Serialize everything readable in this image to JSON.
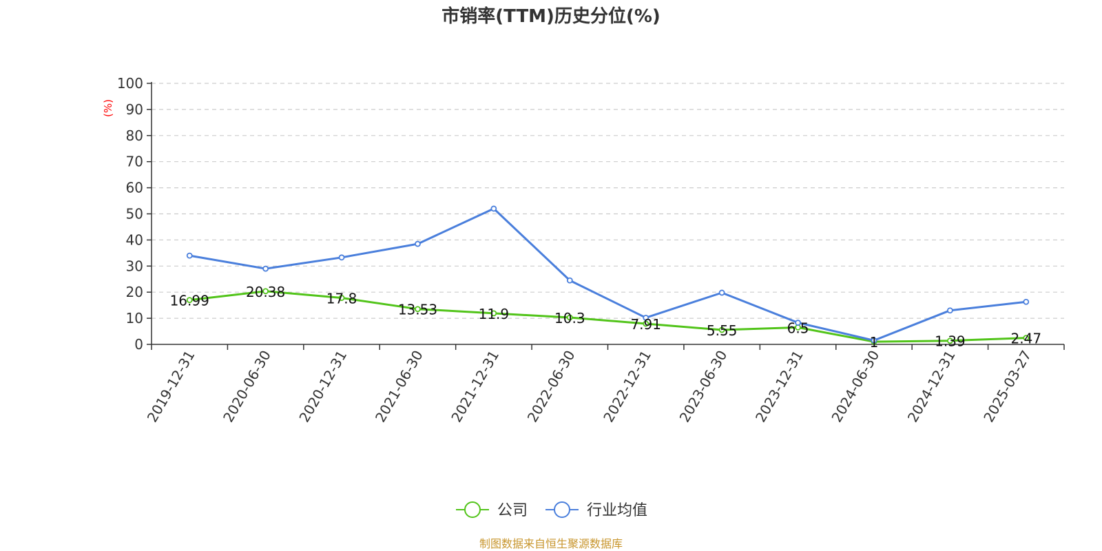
{
  "chart_data": {
    "type": "line",
    "title": "市销率(TTM)历史分位(%)",
    "ylabel": "(%)",
    "xlabel": "",
    "ylim": [
      0,
      100
    ],
    "yticks": [
      0,
      10,
      20,
      30,
      40,
      50,
      60,
      70,
      80,
      90,
      100
    ],
    "grid": true,
    "legend_position": "bottom-center",
    "categories": [
      "2019-12-31",
      "2020-06-30",
      "2020-12-31",
      "2021-06-30",
      "2021-12-31",
      "2022-06-30",
      "2022-12-31",
      "2023-06-30",
      "2023-12-31",
      "2024-06-30",
      "2024-12-31",
      "2025-03-27"
    ],
    "series": [
      {
        "name": "公司",
        "color": "#52c41a",
        "values": [
          16.99,
          20.38,
          17.8,
          13.53,
          11.9,
          10.3,
          7.91,
          5.55,
          6.5,
          1,
          1.39,
          2.47
        ],
        "labels": [
          "16.99",
          "20.38",
          "17.8",
          "13.53",
          "11.9",
          "10.3",
          "7.91",
          "5.55",
          "6.5",
          "1",
          "1.39",
          "2.47"
        ]
      },
      {
        "name": "行业均值",
        "color": "#4a7fdc",
        "values": [
          34,
          29,
          33.3,
          38.5,
          52,
          24.5,
          10.2,
          19.8,
          8.3,
          1.5,
          13,
          16.3
        ]
      }
    ],
    "source": "制图数据来自恒生聚源数据库"
  }
}
